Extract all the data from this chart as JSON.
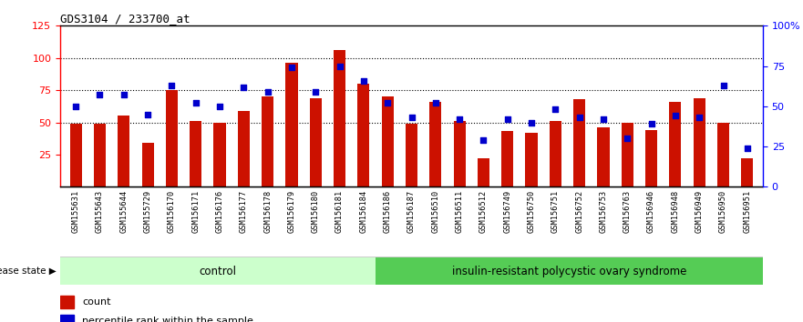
{
  "title": "GDS3104 / 233700_at",
  "samples": [
    "GSM155631",
    "GSM155643",
    "GSM155644",
    "GSM155729",
    "GSM156170",
    "GSM156171",
    "GSM156176",
    "GSM156177",
    "GSM156178",
    "GSM156179",
    "GSM156180",
    "GSM156181",
    "GSM156184",
    "GSM156186",
    "GSM156187",
    "GSM156510",
    "GSM156511",
    "GSM156512",
    "GSM156749",
    "GSM156750",
    "GSM156751",
    "GSM156752",
    "GSM156753",
    "GSM156763",
    "GSM156946",
    "GSM156948",
    "GSM156949",
    "GSM156950",
    "GSM156951"
  ],
  "count_values": [
    49,
    49,
    55,
    34,
    75,
    51,
    50,
    59,
    70,
    96,
    69,
    106,
    80,
    70,
    49,
    66,
    51,
    22,
    43,
    42,
    51,
    68,
    46,
    50,
    44,
    66,
    69,
    50,
    22
  ],
  "percentile_values": [
    50,
    57,
    57,
    45,
    63,
    52,
    50,
    62,
    59,
    74,
    59,
    75,
    66,
    52,
    43,
    52,
    42,
    29,
    42,
    40,
    48,
    43,
    42,
    30,
    39,
    44,
    43,
    63,
    24
  ],
  "control_count": 13,
  "disease_count": 16,
  "left_ylim": [
    0,
    125
  ],
  "left_yticks": [
    25,
    50,
    75,
    100,
    125
  ],
  "right_yticks_vals": [
    0,
    25,
    50,
    75,
    100
  ],
  "right_yticks_labels": [
    "0",
    "25",
    "50",
    "75",
    "100%"
  ],
  "gridlines": [
    50,
    75,
    100
  ],
  "bar_color": "#cc1100",
  "dot_color": "#0000cc",
  "control_bg": "#ccffcc",
  "disease_bg": "#55cc55",
  "label_bg": "#cccccc",
  "plot_bg": "#ffffff",
  "control_label": "control",
  "disease_label": "insulin-resistant polycystic ovary syndrome",
  "disease_state_label": "disease state",
  "legend_count_label": "count",
  "legend_percentile_label": "percentile rank within the sample",
  "bar_width": 0.5
}
